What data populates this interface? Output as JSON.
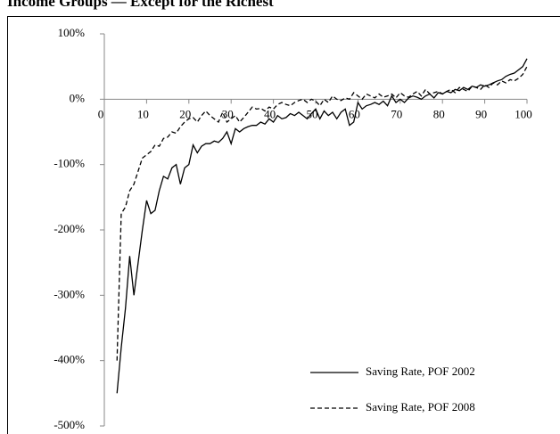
{
  "chart_data": {
    "type": "line",
    "title": "Income Groups — Except for the Richest",
    "x": [
      3,
      4,
      5,
      6,
      7,
      8,
      9,
      10,
      11,
      12,
      13,
      14,
      15,
      16,
      17,
      18,
      19,
      20,
      21,
      22,
      23,
      24,
      25,
      26,
      27,
      28,
      29,
      30,
      31,
      32,
      33,
      34,
      35,
      36,
      37,
      38,
      39,
      40,
      41,
      42,
      43,
      44,
      45,
      46,
      47,
      48,
      49,
      50,
      51,
      52,
      53,
      54,
      55,
      56,
      57,
      58,
      59,
      60,
      61,
      62,
      63,
      64,
      65,
      66,
      67,
      68,
      69,
      70,
      71,
      72,
      73,
      74,
      75,
      76,
      77,
      78,
      79,
      80,
      81,
      82,
      83,
      84,
      85,
      86,
      87,
      88,
      89,
      90,
      91,
      92,
      93,
      94,
      95,
      96,
      97,
      98,
      99,
      100
    ],
    "series": [
      {
        "name": "Saving Rate, POF 2002",
        "color": "#000000",
        "dash": "none",
        "values": [
          -450,
          -380,
          -320,
          -240,
          -300,
          -250,
          -200,
          -155,
          -175,
          -170,
          -140,
          -118,
          -122,
          -105,
          -100,
          -130,
          -105,
          -100,
          -70,
          -82,
          -72,
          -68,
          -68,
          -64,
          -66,
          -60,
          -50,
          -68,
          -45,
          -50,
          -45,
          -42,
          -40,
          -40,
          -35,
          -38,
          -30,
          -35,
          -25,
          -30,
          -28,
          -22,
          -25,
          -20,
          -25,
          -30,
          -22,
          -15,
          -30,
          -18,
          -25,
          -20,
          -30,
          -20,
          -15,
          -40,
          -35,
          -5,
          -15,
          -10,
          -8,
          -5,
          -8,
          -3,
          -10,
          5,
          -5,
          0,
          -5,
          2,
          5,
          3,
          0,
          5,
          8,
          2,
          10,
          8,
          12,
          10,
          15,
          13,
          18,
          15,
          20,
          18,
          22,
          20,
          22,
          25,
          28,
          30,
          35,
          38,
          40,
          45,
          50,
          62
        ]
      },
      {
        "name": "Saving Rate, POF 2008",
        "color": "#000000",
        "dash": "5,3",
        "values": [
          -400,
          -175,
          -165,
          -140,
          -130,
          -110,
          -90,
          -85,
          -80,
          -70,
          -72,
          -60,
          -58,
          -50,
          -52,
          -42,
          -35,
          -30,
          -28,
          -35,
          -25,
          -18,
          -25,
          -30,
          -35,
          -20,
          -35,
          -30,
          -25,
          -35,
          -28,
          -20,
          -12,
          -15,
          -14,
          -18,
          -12,
          -15,
          -8,
          -5,
          -8,
          -10,
          -5,
          -2,
          0,
          -5,
          0,
          -3,
          -10,
          0,
          -5,
          5,
          0,
          -2,
          2,
          0,
          10,
          5,
          0,
          8,
          5,
          2,
          8,
          3,
          5,
          8,
          2,
          10,
          5,
          3,
          8,
          12,
          5,
          15,
          8,
          10,
          12,
          8,
          12,
          15,
          10,
          18,
          15,
          12,
          20,
          18,
          15,
          22,
          18,
          25,
          22,
          28,
          25,
          30,
          28,
          32,
          38,
          50
        ]
      }
    ],
    "xlim": [
      0,
      100
    ],
    "xticks": [
      0,
      10,
      20,
      30,
      40,
      50,
      60,
      70,
      80,
      90,
      100
    ],
    "ylim": [
      -500,
      100
    ],
    "yticks": [
      {
        "value": -500,
        "label": "-500%"
      },
      {
        "value": -400,
        "label": "-400%"
      },
      {
        "value": -300,
        "label": "-300%"
      },
      {
        "value": -200,
        "label": "-200%"
      },
      {
        "value": -100,
        "label": "-100%"
      },
      {
        "value": 0,
        "label": "0%"
      },
      {
        "value": 100,
        "label": "100%"
      }
    ],
    "grid": false,
    "legend": "lower right"
  }
}
